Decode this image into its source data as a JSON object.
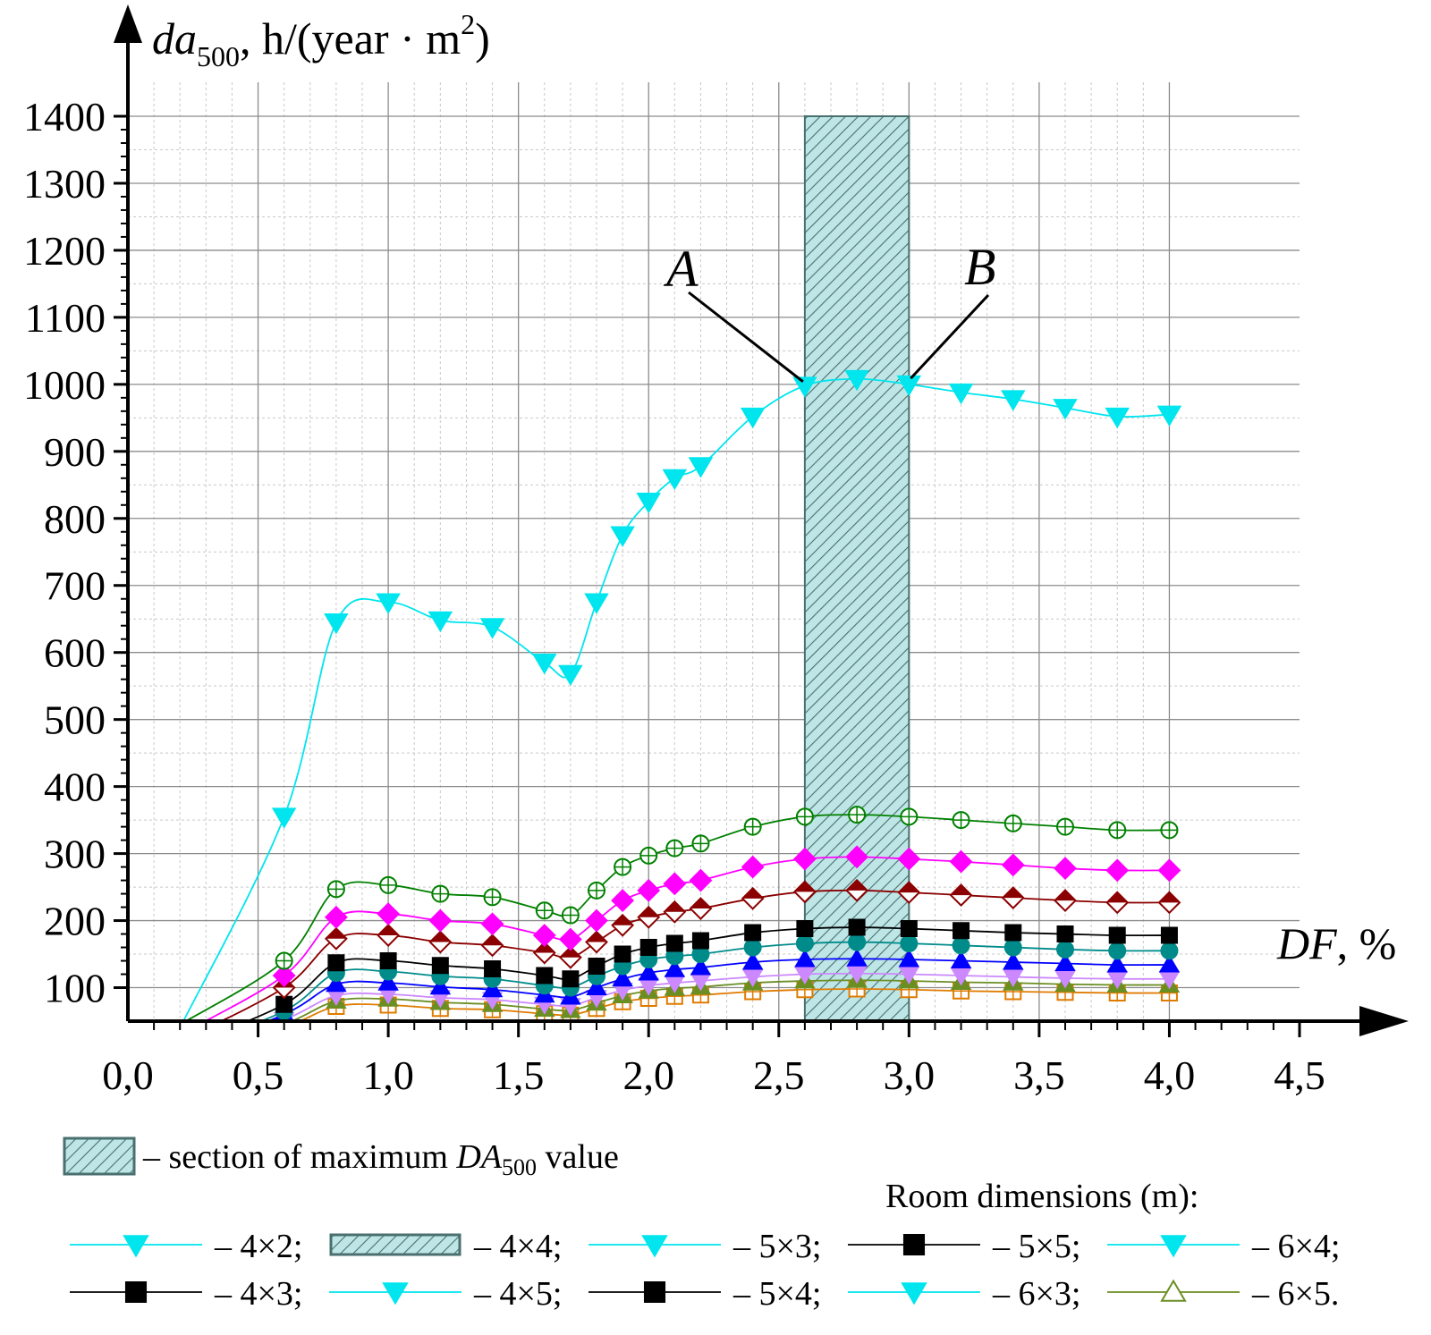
{
  "chart_data": {
    "type": "line",
    "title": "",
    "ylabel_main": "da",
    "ylabel_sub": "500",
    "ylabel_rest": ", h/(year · m",
    "ylabel_sup": "2",
    "ylabel_close": ")",
    "xlabel_main": "DF",
    "xlabel_rest": ", %",
    "xlim": [
      0.0,
      4.5
    ],
    "ylim": [
      50,
      1450
    ],
    "x_ticks": [
      0.0,
      0.5,
      1.0,
      1.5,
      2.0,
      2.5,
      3.0,
      3.5,
      4.0,
      4.5
    ],
    "x_tick_labels": [
      "0,0",
      "0,5",
      "1,0",
      "1,5",
      "2,0",
      "2,5",
      "3,0",
      "3,5",
      "4,0",
      "4,5"
    ],
    "y_ticks": [
      100,
      200,
      300,
      400,
      500,
      600,
      700,
      800,
      900,
      1000,
      1100,
      1200,
      1300,
      1400
    ],
    "y_tick_labels": [
      "100",
      "200",
      "300",
      "400",
      "500",
      "600",
      "700",
      "800",
      "900",
      "1000",
      "1100",
      "1200",
      "1300",
      "1400"
    ],
    "grid": true,
    "highlight_band": {
      "x_from": 2.6,
      "x_to": 3.0,
      "y_to": 1400,
      "fill": "#bfe6e6",
      "hatch": "#4a6f6f"
    },
    "annotations": [
      {
        "label": "A",
        "x": 2.6,
        "y": 1000
      },
      {
        "label": "B",
        "x": 3.0,
        "y": 1005
      }
    ],
    "x": [
      0.2,
      0.6,
      0.8,
      1.0,
      1.2,
      1.4,
      1.6,
      1.7,
      1.8,
      1.9,
      2.0,
      2.1,
      2.2,
      2.4,
      2.6,
      2.8,
      3.0,
      3.2,
      3.4,
      3.6,
      3.8,
      4.0
    ],
    "series": [
      {
        "color": "#00e5ee",
        "marker": "tri-down",
        "filled": true,
        "values": [
          40,
          355,
          645,
          675,
          648,
          638,
          585,
          568,
          675,
          775,
          825,
          860,
          878,
          952,
          998,
          1008,
          1000,
          988,
          978,
          965,
          952,
          955
        ]
      },
      {
        "color": "#008000",
        "marker": "circle-plus",
        "filled": false,
        "values": [
          45,
          140,
          247,
          253,
          240,
          235,
          215,
          208,
          245,
          280,
          297,
          308,
          315,
          340,
          355,
          358,
          355,
          350,
          345,
          340,
          335,
          335
        ]
      },
      {
        "color": "#ff00ff",
        "marker": "diamond",
        "filled": true,
        "values": [
          30,
          118,
          205,
          210,
          200,
          195,
          178,
          172,
          200,
          230,
          245,
          255,
          260,
          280,
          292,
          295,
          292,
          288,
          283,
          278,
          275,
          275
        ]
      },
      {
        "color": "#8b0000",
        "marker": "diamond-half",
        "filled": true,
        "values": [
          20,
          100,
          173,
          178,
          168,
          163,
          152,
          145,
          168,
          193,
          205,
          213,
          218,
          233,
          243,
          245,
          242,
          238,
          234,
          230,
          227,
          227
        ]
      },
      {
        "color": "#000000",
        "marker": "square",
        "filled": true,
        "values": [
          10,
          75,
          137,
          140,
          133,
          128,
          118,
          113,
          132,
          150,
          160,
          166,
          170,
          182,
          188,
          190,
          188,
          185,
          182,
          180,
          178,
          178
        ]
      },
      {
        "color": "#008b8b",
        "marker": "circle",
        "filled": true,
        "values": [
          5,
          65,
          122,
          124,
          117,
          113,
          103,
          100,
          117,
          132,
          142,
          147,
          150,
          160,
          166,
          168,
          166,
          163,
          160,
          157,
          155,
          155
        ]
      },
      {
        "color": "#0000ff",
        "marker": "tri-up",
        "filled": true,
        "values": [
          0,
          60,
          105,
          107,
          101,
          97,
          89,
          86,
          100,
          113,
          122,
          127,
          130,
          138,
          142,
          143,
          142,
          140,
          138,
          136,
          134,
          134
        ]
      },
      {
        "color": "#cc88ff",
        "marker": "tri-down",
        "filled": true,
        "values": [
          -5,
          52,
          88,
          90,
          85,
          82,
          75,
          73,
          85,
          96,
          103,
          107,
          110,
          116,
          120,
          121,
          120,
          118,
          116,
          114,
          113,
          113
        ]
      },
      {
        "color": "#6b8e23",
        "marker": "tri-up",
        "filled": true,
        "values": [
          -10,
          45,
          80,
          83,
          78,
          75,
          68,
          66,
          77,
          88,
          95,
          99,
          101,
          107,
          110,
          111,
          110,
          108,
          107,
          105,
          104,
          104
        ]
      },
      {
        "color": "#e07b00",
        "marker": "square-plus",
        "filled": false,
        "values": [
          -15,
          40,
          72,
          74,
          69,
          67,
          61,
          59,
          69,
          79,
          84,
          87,
          89,
          94,
          97,
          98,
          97,
          95,
          94,
          93,
          92,
          92
        ]
      }
    ],
    "legend": {
      "band_label_prefix": "– section of maximum ",
      "band_label_italic": "DA",
      "band_label_sub": "500",
      "band_label_suffix": " value",
      "header": "Room dimensions (m):",
      "entries": [
        {
          "text": "– 4×2;",
          "color": "#00e5ee",
          "marker": "tri-down",
          "type": "line"
        },
        {
          "text": "– 4×4;",
          "color": "#4a6f6f",
          "marker": "none",
          "type": "band"
        },
        {
          "text": "– 5×3;",
          "color": "#00e5ee",
          "marker": "tri-down",
          "type": "line"
        },
        {
          "text": "– 5×5;",
          "color": "#000000",
          "marker": "square",
          "type": "line"
        },
        {
          "text": "– 6×4;",
          "color": "#00e5ee",
          "marker": "tri-down",
          "type": "line"
        },
        {
          "text": "– 4×3;",
          "color": "#000000",
          "marker": "square",
          "type": "line"
        },
        {
          "text": "– 4×5;",
          "color": "#00e5ee",
          "marker": "tri-down",
          "type": "line"
        },
        {
          "text": "– 5×4;",
          "color": "#000000",
          "marker": "square",
          "type": "line"
        },
        {
          "text": "– 6×3;",
          "color": "#00e5ee",
          "marker": "tri-down",
          "type": "line"
        },
        {
          "text": "– 6×5.",
          "color": "#6b8e23",
          "marker": "tri-up-open",
          "type": "line"
        }
      ]
    }
  }
}
